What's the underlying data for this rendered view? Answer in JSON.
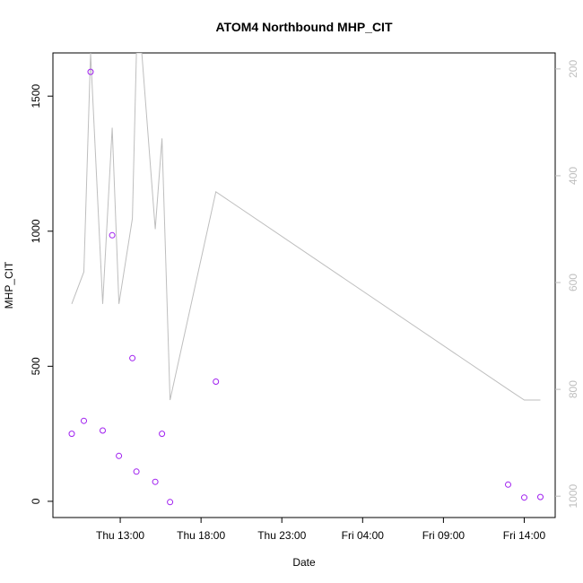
{
  "chart_data": {
    "type": "scatter",
    "title": "ATOM4 Northbound MHP_CIT",
    "xlabel": "Date",
    "ylabel": "MHP_CIT",
    "ylim": [
      -60,
      1660
    ],
    "y2lim": [
      1040,
      170
    ],
    "xlim": [
      "Thu 08:50",
      "Fri 15:55"
    ],
    "y_ticks": [
      0,
      500,
      1000,
      1500
    ],
    "y2_ticks": [
      200,
      400,
      600,
      800,
      1000
    ],
    "x_ticks": [
      {
        "t": "Thu 13:00",
        "label": "Thu 13:00"
      },
      {
        "t": "Thu 18:00",
        "label": "Thu 18:00"
      },
      {
        "t": "Thu 23:00",
        "label": "Thu 23:00"
      },
      {
        "t": "Fri 04:00",
        "label": "Fri 04:00"
      },
      {
        "t": "Fri 09:00",
        "label": "Fri 09:00"
      },
      {
        "t": "Fri 14:00",
        "label": "Fri 14:00"
      }
    ],
    "grid": false,
    "series": [
      {
        "type": "scatter",
        "axis": "left",
        "color": "#a020f0",
        "marker": "open-circle",
        "points": [
          {
            "t": "Thu 10:00",
            "y": 250
          },
          {
            "t": "Thu 10:45",
            "y": 298
          },
          {
            "t": "Thu 11:10",
            "y": 1590
          },
          {
            "t": "Thu 11:55",
            "y": 262
          },
          {
            "t": "Thu 12:30",
            "y": 985
          },
          {
            "t": "Thu 12:55",
            "y": 168
          },
          {
            "t": "Thu 13:45",
            "y": 530
          },
          {
            "t": "Thu 14:00",
            "y": 110
          },
          {
            "t": "Thu 15:10",
            "y": 72
          },
          {
            "t": "Thu 15:35",
            "y": 250
          },
          {
            "t": "Thu 16:05",
            "y": -3
          },
          {
            "t": "Thu 18:55",
            "y": 443
          },
          {
            "t": "Fri 13:00",
            "y": 62
          },
          {
            "t": "Fri 14:00",
            "y": 14
          },
          {
            "t": "Fri 15:00",
            "y": 16
          }
        ]
      },
      {
        "type": "line",
        "axis": "right",
        "color": "#bebebe",
        "points": [
          {
            "t": "Thu 10:00",
            "y": 640
          },
          {
            "t": "Thu 10:45",
            "y": 580
          },
          {
            "t": "Thu 11:10",
            "y": 170
          },
          {
            "t": "Thu 11:55",
            "y": 640
          },
          {
            "t": "Thu 12:30",
            "y": 310
          },
          {
            "t": "Thu 12:55",
            "y": 640
          },
          {
            "t": "Thu 13:45",
            "y": 480
          },
          {
            "t": "Thu 14:00",
            "y": 170
          },
          {
            "t": "Thu 14:20",
            "y": 170
          },
          {
            "t": "Thu 15:10",
            "y": 500
          },
          {
            "t": "Thu 15:35",
            "y": 330
          },
          {
            "t": "Thu 16:05",
            "y": 820
          },
          {
            "t": "Thu 18:55",
            "y": 430
          },
          {
            "t": "Fri 13:00",
            "y": 800
          },
          {
            "t": "Fri 14:00",
            "y": 820
          },
          {
            "t": "Fri 15:00",
            "y": 820
          }
        ]
      }
    ]
  }
}
